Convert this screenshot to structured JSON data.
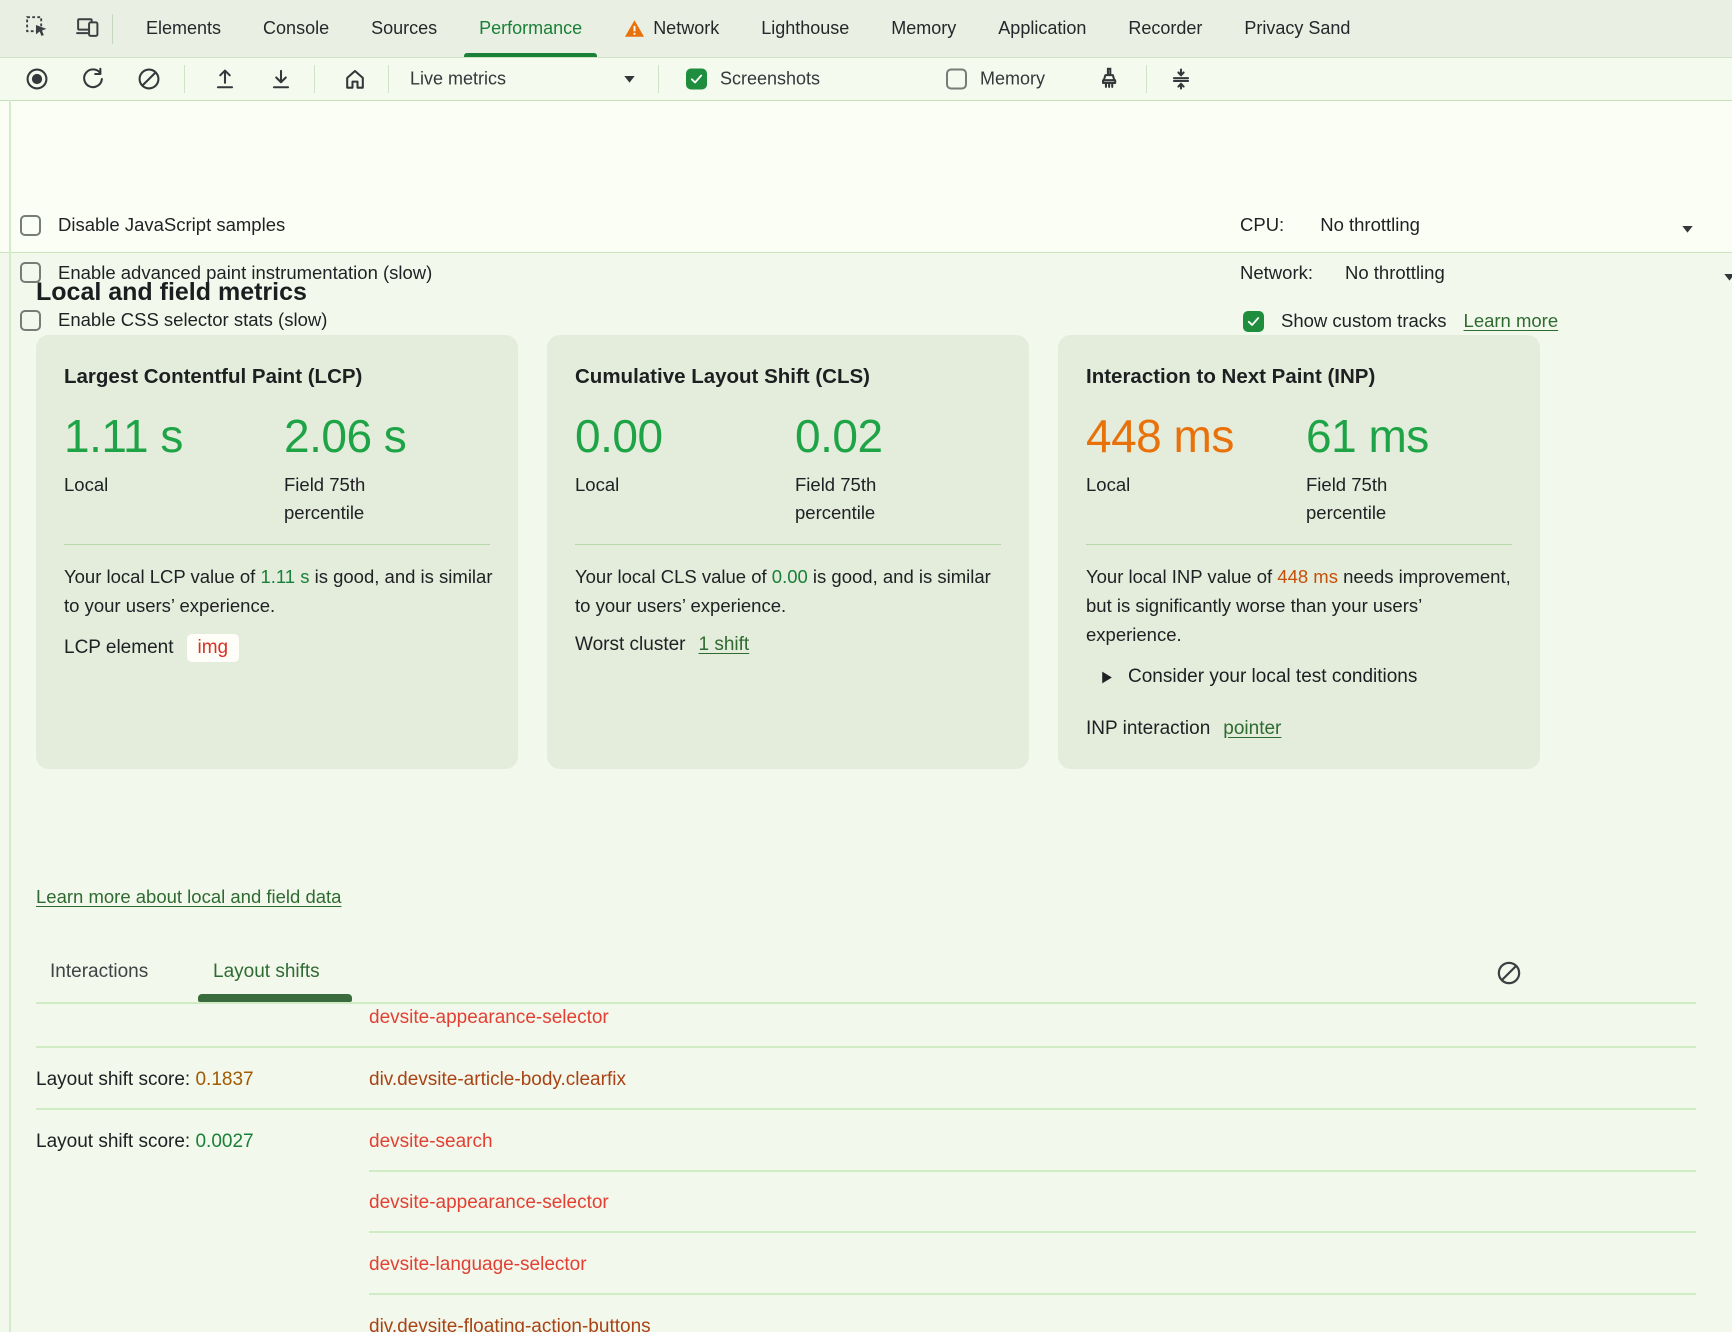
{
  "tabbar": {
    "icons": [
      {
        "name": "inspect-icon"
      },
      {
        "name": "device-toolbar-icon"
      }
    ],
    "tabs": [
      {
        "label": "Elements",
        "active": false,
        "warning": false
      },
      {
        "label": "Console",
        "active": false,
        "warning": false
      },
      {
        "label": "Sources",
        "active": false,
        "warning": false
      },
      {
        "label": "Performance",
        "active": true,
        "warning": false
      },
      {
        "label": "Network",
        "active": false,
        "warning": true
      },
      {
        "label": "Lighthouse",
        "active": false,
        "warning": false
      },
      {
        "label": "Memory",
        "active": false,
        "warning": false
      },
      {
        "label": "Application",
        "active": false,
        "warning": false
      },
      {
        "label": "Recorder",
        "active": false,
        "warning": false
      },
      {
        "label": "Privacy Sand",
        "active": false,
        "warning": false
      }
    ]
  },
  "toolbar": {
    "live_metrics_label": "Live metrics",
    "screenshots_label": "Screenshots",
    "screenshots_checked": true,
    "memory_label": "Memory",
    "memory_checked": false
  },
  "settings": {
    "checkboxes": [
      {
        "label": "Disable JavaScript samples",
        "checked": false
      },
      {
        "label": "Enable advanced paint instrumentation (slow)",
        "checked": false
      },
      {
        "label": "Enable CSS selector stats (slow)",
        "checked": false
      }
    ],
    "cpu_label": "CPU:",
    "cpu_value": "No throttling",
    "network_label": "Network:",
    "network_value": "No throttling",
    "custom_tracks_label": "Show custom tracks",
    "custom_tracks_link": "Learn more",
    "custom_tracks_checked": true
  },
  "metrics": {
    "heading": "Local and field metrics",
    "learn_more_link": "Learn more about local and field data",
    "cards": [
      {
        "title": "Largest Contentful Paint (LCP)",
        "local_value": "1.11 s",
        "local_style": "good",
        "local_label": "Local",
        "field_value": "2.06 s",
        "field_style": "good",
        "field_label": "Field 75th percentile",
        "desc_prefix": "Your local LCP value of ",
        "desc_value": "1.11 s",
        "desc_value_style": "inline-good",
        "desc_suffix": " is good, and is similar to your users’ experience.",
        "footer_label": "LCP element",
        "footer_chip": "img"
      },
      {
        "title": "Cumulative Layout Shift (CLS)",
        "local_value": "0.00",
        "local_style": "good",
        "local_label": "Local",
        "field_value": "0.02",
        "field_style": "good",
        "field_label": "Field 75th percentile",
        "desc_prefix": "Your local CLS value of ",
        "desc_value": "0.00",
        "desc_value_style": "inline-good",
        "desc_suffix": " is good, and is similar to your users’ experience.",
        "footer_label": "Worst cluster",
        "footer_link": "1 shift"
      },
      {
        "title": "Interaction to Next Paint (INP)",
        "local_value": "448 ms",
        "local_style": "warn",
        "local_label": "Local",
        "field_value": "61 ms",
        "field_style": "good",
        "field_label": "Field 75th percentile",
        "desc_prefix": "Your local INP value of ",
        "desc_value": "448 ms",
        "desc_value_style": "inline-warn",
        "desc_suffix": " needs improvement, but is significantly worse than your users’ experience.",
        "expand_label": "Consider your local test conditions",
        "footer_label": "INP interaction",
        "footer_link": "pointer"
      }
    ]
  },
  "log": {
    "tabs": [
      {
        "label": "Interactions",
        "active": false
      },
      {
        "label": "Layout shifts",
        "active": true
      }
    ],
    "rows": [
      {
        "element": "devsite-appearance-selector",
        "element_style": "red",
        "separator": "full"
      },
      {
        "score_label": "Layout shift score:",
        "score": "0.1837",
        "score_style": "amber",
        "element": "div.devsite-article-body.clearfix",
        "element_style": "brown",
        "separator": "full"
      },
      {
        "score_label": "Layout shift score:",
        "score": "0.0027",
        "score_style": "green",
        "element": "devsite-search",
        "element_style": "red",
        "separator": "partial"
      },
      {
        "element": "devsite-appearance-selector",
        "element_style": "red",
        "separator": "partial"
      },
      {
        "element": "devsite-language-selector",
        "element_style": "red",
        "separator": "partial"
      },
      {
        "element": "div.devsite-floating-action-buttons",
        "element_style": "brown",
        "separator": "none"
      }
    ]
  },
  "colors": {
    "accent_green": "#1a8038",
    "value_good": "#1ea446",
    "value_warn": "#e8710a",
    "inline_good": "#188038",
    "inline_warn": "#c5500a",
    "score_amber": "#a05a00",
    "score_green": "#188038",
    "element_red": "#e33f33",
    "element_brown": "#a94315",
    "link_green": "#2e6b31",
    "checkbox_green": "#1e8e3e",
    "warning_orange": "#e8710a",
    "card_bg": "#e4ecdc",
    "tabbar_bg": "#e9efe3",
    "chip_text_red": "#d93025"
  }
}
